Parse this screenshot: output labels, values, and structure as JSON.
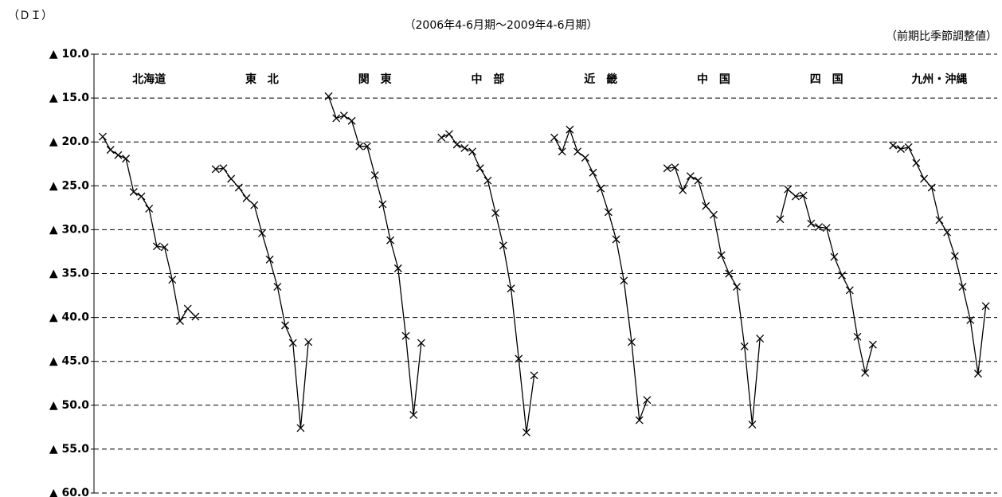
{
  "chart_data": {
    "type": "line",
    "subtitle": "（2006年4-6月期～2009年4-6月期）",
    "y_label": "（ＤＩ）",
    "note": "（前期比季節調整値）",
    "ylim": [
      -60,
      -10
    ],
    "yticks": [
      {
        "value": -10,
        "label": "▲ 10.0"
      },
      {
        "value": -15,
        "label": "▲ 15.0"
      },
      {
        "value": -20,
        "label": "▲ 20.0"
      },
      {
        "value": -25,
        "label": "▲ 25.0"
      },
      {
        "value": -30,
        "label": "▲ 30.0"
      },
      {
        "value": -35,
        "label": "▲ 35.0"
      },
      {
        "value": -40,
        "label": "▲ 40.0"
      },
      {
        "value": -45,
        "label": "▲ 45.0"
      },
      {
        "value": -50,
        "label": "▲ 50.0"
      },
      {
        "value": -55,
        "label": "▲ 55.0"
      },
      {
        "value": -60,
        "label": "▲ 60.0"
      }
    ],
    "grid": true,
    "series": [
      {
        "name": "北海道",
        "color": "#000000",
        "values": [
          -19.4,
          -20.9,
          -21.5,
          -21.9,
          -25.7,
          -26.2,
          -27.6,
          -31.9,
          -32.0,
          -35.7,
          -40.4,
          -39.0,
          -39.9
        ]
      },
      {
        "name": "東　北",
        "color": "#000000",
        "values": [
          -23.1,
          -23.0,
          -24.2,
          -25.2,
          -26.4,
          -27.2,
          -30.4,
          -33.4,
          -36.5,
          -40.9,
          -42.9,
          -52.6,
          -42.8
        ]
      },
      {
        "name": "関　東",
        "color": "#000000",
        "values": [
          -14.8,
          -17.3,
          -17.0,
          -17.6,
          -20.5,
          -20.5,
          -23.8,
          -27.1,
          -31.2,
          -34.4,
          -42.1,
          -51.1,
          -42.9
        ]
      },
      {
        "name": "中　部",
        "color": "#000000",
        "values": [
          -19.5,
          -19.1,
          -20.3,
          -20.7,
          -21.1,
          -23.0,
          -24.4,
          -28.1,
          -31.8,
          -36.7,
          -44.7,
          -53.1,
          -46.6
        ]
      },
      {
        "name": "近　畿",
        "color": "#000000",
        "values": [
          -19.5,
          -21.1,
          -18.6,
          -21.1,
          -21.8,
          -23.5,
          -25.3,
          -28.0,
          -31.1,
          -35.8,
          -42.8,
          -51.7,
          -49.4
        ]
      },
      {
        "name": "中　国",
        "color": "#000000",
        "values": [
          -23.0,
          -22.9,
          -25.5,
          -23.9,
          -24.4,
          -27.3,
          -28.3,
          -32.9,
          -35.0,
          -36.5,
          -43.3,
          -52.2,
          -42.4
        ]
      },
      {
        "name": "四　国",
        "color": "#000000",
        "values": [
          -28.8,
          -25.4,
          -26.2,
          -26.1,
          -29.3,
          -29.7,
          -29.8,
          -33.1,
          -35.2,
          -36.9,
          -42.2,
          -46.3,
          -43.1
        ]
      },
      {
        "name": "九州・沖縄",
        "color": "#000000",
        "values": [
          -20.4,
          -20.8,
          -20.6,
          -22.4,
          -24.2,
          -25.2,
          -28.9,
          -30.3,
          -33.0,
          -36.5,
          -40.3,
          -46.4,
          -38.7
        ]
      }
    ]
  }
}
